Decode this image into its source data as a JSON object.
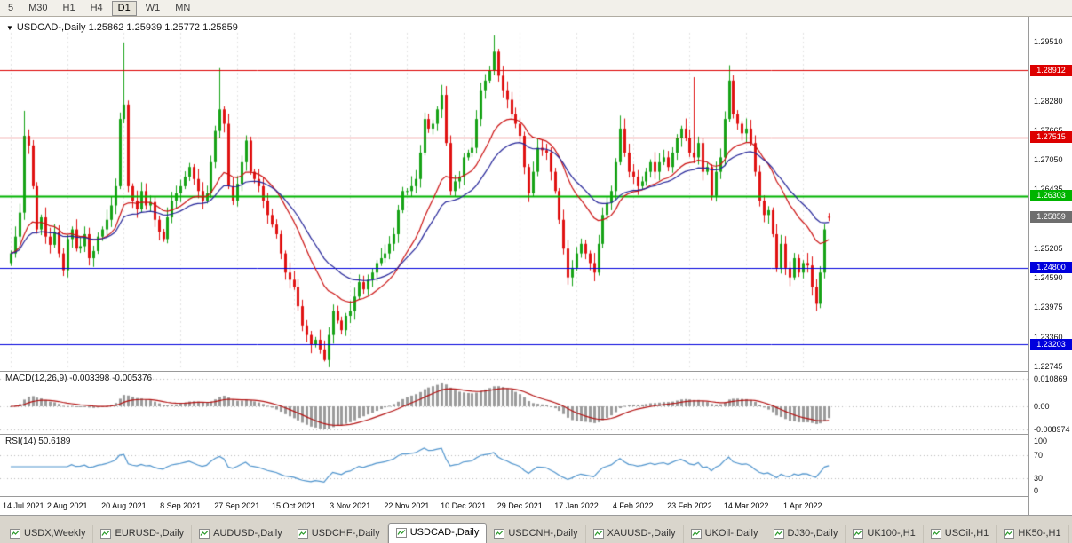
{
  "toolbar": {
    "timeframes": [
      {
        "label": "5",
        "active": false
      },
      {
        "label": "M30",
        "active": false
      },
      {
        "label": "H1",
        "active": false
      },
      {
        "label": "H4",
        "active": false
      },
      {
        "label": "D1",
        "active": true
      },
      {
        "label": "W1",
        "active": false
      },
      {
        "label": "MN",
        "active": false
      }
    ]
  },
  "chart": {
    "symbol_period": "USDCAD-,Daily",
    "ohlc_text": "1.25862 1.25939 1.25772 1.25859"
  },
  "price_axis": {
    "ticks": [
      "1.29510",
      "1.28280",
      "1.27665",
      "1.27050",
      "1.26435",
      "1.25205",
      "1.24590",
      "1.23975",
      "1.23360",
      "1.22745"
    ]
  },
  "levels": [
    {
      "price": 1.28912,
      "label": "1.28912",
      "color": "#dd0000",
      "width": 1
    },
    {
      "price": 1.27515,
      "label": "1.27515",
      "color": "#dd0000",
      "width": 1
    },
    {
      "price": 1.26303,
      "label": "1.26303",
      "color": "#00b400",
      "width": 2
    },
    {
      "price": 1.248,
      "label": "1.24800",
      "color": "#0000dd",
      "width": 1
    },
    {
      "price": 1.23203,
      "label": "1.23203",
      "color": "#0000dd",
      "width": 1
    }
  ],
  "current_price": {
    "label": "1.25859",
    "value": 1.25859
  },
  "macd": {
    "label": "MACD(12,26,9)",
    "values_text": "-0.003398 -0.005376",
    "fast": 12,
    "slow": 26,
    "signal": 9,
    "axis_ticks": [
      {
        "value": 0.010869,
        "label": "0.010869"
      },
      {
        "value": 0,
        "label": "0.00"
      },
      {
        "value": -0.008974,
        "label": "-0.008974"
      }
    ]
  },
  "rsi": {
    "label": "RSI(14)",
    "value_text": "50.6189",
    "period": 14,
    "levels": [
      70,
      30
    ],
    "axis_ticks": [
      {
        "value": 100,
        "label": "100"
      },
      {
        "value": 70,
        "label": "70"
      },
      {
        "value": 30,
        "label": "30"
      },
      {
        "value": 0,
        "label": "0"
      }
    ]
  },
  "tabs": [
    {
      "label": "USDX,Weekly",
      "active": false
    },
    {
      "label": "EURUSD-,Daily",
      "active": false
    },
    {
      "label": "AUDUSD-,Daily",
      "active": false
    },
    {
      "label": "USDCHF-,Daily",
      "active": false
    },
    {
      "label": "USDCAD-,Daily",
      "active": true
    },
    {
      "label": "USDCNH-,Daily",
      "active": false
    },
    {
      "label": "XAUUSD-,Daily",
      "active": false
    },
    {
      "label": "UKOil-,Daily",
      "active": false
    },
    {
      "label": "DJ30-,Daily",
      "active": false
    },
    {
      "label": "UK100-,H1",
      "active": false
    },
    {
      "label": "USOil-,H1",
      "active": false
    },
    {
      "label": "HK50-,H1",
      "active": false
    }
  ],
  "colors": {
    "up": "#17a317",
    "down": "#e01212",
    "ma_fast": "#cc1111",
    "ma_slow": "#242499",
    "macd_hist": "#9b9b9b",
    "macd_signal": "#b41414",
    "rsi_line": "#4f94cd",
    "grid": "#e3e3e3",
    "panel_border": "#9a9a9a",
    "badge_current_bg": "#6e6e6e",
    "axis_text": "#111111"
  },
  "chart_data": {
    "type": "candlestick",
    "title": "USDCAD-,Daily",
    "current_bar": {
      "open": 1.25862,
      "high": 1.25939,
      "low": 1.25772,
      "close": 1.25859
    },
    "first_open": 1.249,
    "closes": [
      1.251,
      1.2545,
      1.2595,
      1.2755,
      1.2735,
      1.265,
      1.256,
      1.2585,
      1.2545,
      1.2528,
      1.2555,
      1.251,
      1.2475,
      1.254,
      1.256,
      1.252,
      1.2525,
      1.255,
      1.25,
      1.2515,
      1.2545,
      1.256,
      1.258,
      1.261,
      1.265,
      1.279,
      1.282,
      1.265,
      1.262,
      1.2602,
      1.264,
      1.261,
      1.2617,
      1.258,
      1.2555,
      1.254,
      1.2585,
      1.262,
      1.2635,
      1.265,
      1.267,
      1.269,
      1.2665,
      1.264,
      1.262,
      1.2635,
      1.27,
      1.2765,
      1.281,
      1.278,
      1.265,
      1.262,
      1.2655,
      1.27,
      1.2745,
      1.268,
      1.2665,
      1.265,
      1.262,
      1.259,
      1.257,
      1.255,
      1.251,
      1.247,
      1.2455,
      1.244,
      1.24,
      1.236,
      1.234,
      1.232,
      1.233,
      1.231,
      1.2288,
      1.234,
      1.239,
      1.237,
      1.235,
      1.238,
      1.239,
      1.242,
      1.245,
      1.2435,
      1.2455,
      1.247,
      1.249,
      1.25,
      1.251,
      1.253,
      1.255,
      1.26,
      1.264,
      1.264,
      1.265,
      1.2665,
      1.272,
      1.279,
      1.277,
      1.278,
      1.281,
      1.284,
      1.274,
      1.264,
      1.266,
      1.267,
      1.271,
      1.272,
      1.273,
      1.279,
      1.285,
      1.287,
      1.289,
      1.293,
      1.288,
      1.285,
      1.283,
      1.28,
      1.278,
      1.2755,
      1.269,
      1.2635,
      1.268,
      1.273,
      1.2725,
      1.272,
      1.268,
      1.264,
      1.258,
      1.252,
      1.246,
      1.248,
      1.251,
      1.253,
      1.251,
      1.249,
      1.247,
      1.253,
      1.259,
      1.2615,
      1.264,
      1.27,
      1.277,
      1.272,
      1.268,
      1.267,
      1.265,
      1.266,
      1.268,
      1.27,
      1.268,
      1.27,
      1.271,
      1.269,
      1.272,
      1.275,
      1.277,
      1.275,
      1.272,
      1.271,
      1.274,
      1.268,
      1.269,
      1.263,
      1.268,
      1.271,
      1.279,
      1.287,
      1.28,
      1.278,
      1.276,
      1.277,
      1.274,
      1.268,
      1.262,
      1.259,
      1.26,
      1.255,
      1.248,
      1.253,
      1.248,
      1.246,
      1.25,
      1.247,
      1.249,
      1.2485,
      1.244,
      1.2405,
      1.247,
      1.256,
      1.25859
    ],
    "spikes": [
      {
        "i": 3,
        "h": 1.2807
      },
      {
        "i": 26,
        "h": 1.2949
      },
      {
        "i": 48,
        "h": 1.2896
      },
      {
        "i": 72,
        "l": 1.2285
      },
      {
        "i": 111,
        "h": 1.2964
      },
      {
        "i": 140,
        "h": 1.2797
      },
      {
        "i": 157,
        "h": 1.2877
      },
      {
        "i": 165,
        "h": 1.2902
      },
      {
        "i": 185,
        "l": 1.239
      },
      {
        "i": 188,
        "o": 1.25862,
        "h": 1.25939,
        "l": 1.25772
      }
    ],
    "ma": [
      {
        "period": 18,
        "color": "#cc1111"
      },
      {
        "period": 30,
        "color": "#242499"
      }
    ],
    "x_labels": [
      {
        "i": 0,
        "label": "14 Jul 2021"
      },
      {
        "i": 13,
        "label": "2 Aug 2021"
      },
      {
        "i": 26,
        "label": "20 Aug 2021"
      },
      {
        "i": 39,
        "label": "8 Sep 2021"
      },
      {
        "i": 52,
        "label": "27 Sep 2021"
      },
      {
        "i": 65,
        "label": "15 Oct 2021"
      },
      {
        "i": 78,
        "label": "3 Nov 2021"
      },
      {
        "i": 91,
        "label": "22 Nov 2021"
      },
      {
        "i": 104,
        "label": "10 Dec 2021"
      },
      {
        "i": 117,
        "label": "29 Dec 2021"
      },
      {
        "i": 130,
        "label": "17 Jan 2022"
      },
      {
        "i": 143,
        "label": "4 Feb 2022"
      },
      {
        "i": 156,
        "label": "23 Feb 2022"
      },
      {
        "i": 169,
        "label": "14 Mar 2022"
      },
      {
        "i": 182,
        "label": "1 Apr 2022"
      }
    ]
  }
}
